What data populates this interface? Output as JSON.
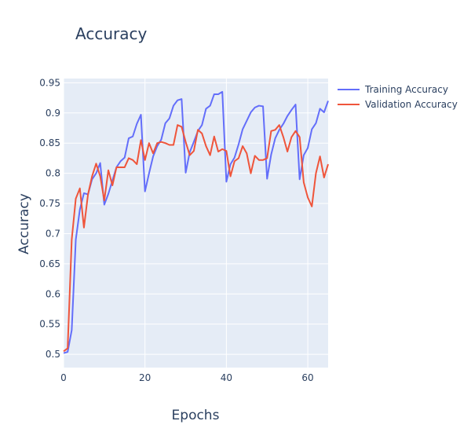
{
  "chart_data": {
    "type": "line",
    "title": "Accuracy",
    "xlabel": "Epochs",
    "ylabel": "Accuracy",
    "xlim": [
      0,
      65
    ],
    "ylim": [
      0.478,
      0.957
    ],
    "x_ticks": [
      0,
      20,
      40,
      60
    ],
    "y_ticks": [
      0.5,
      0.55,
      0.6,
      0.65,
      0.7,
      0.75,
      0.8,
      0.85,
      0.9,
      0.95
    ],
    "grid": true,
    "legend_position": "top-right",
    "background_color": "#e5ecf6",
    "series": [
      {
        "name": "Training Accuracy",
        "color": "#636efa",
        "values": [
          0.502,
          0.504,
          0.54,
          0.69,
          0.74,
          0.767,
          0.765,
          0.79,
          0.8,
          0.817,
          0.748,
          0.766,
          0.788,
          0.81,
          0.82,
          0.826,
          0.858,
          0.861,
          0.882,
          0.897,
          0.77,
          0.8,
          0.828,
          0.845,
          0.856,
          0.883,
          0.891,
          0.912,
          0.921,
          0.923,
          0.801,
          0.835,
          0.852,
          0.87,
          0.88,
          0.907,
          0.912,
          0.931,
          0.931,
          0.935,
          0.786,
          0.815,
          0.826,
          0.848,
          0.873,
          0.887,
          0.901,
          0.909,
          0.912,
          0.911,
          0.791,
          0.831,
          0.858,
          0.872,
          0.882,
          0.895,
          0.905,
          0.914,
          0.79,
          0.83,
          0.842,
          0.873,
          0.883,
          0.907,
          0.901,
          0.92
        ]
      },
      {
        "name": "Validation Accuracy",
        "color": "#ef553b",
        "values": [
          0.505,
          0.51,
          0.69,
          0.758,
          0.775,
          0.71,
          0.765,
          0.795,
          0.816,
          0.795,
          0.755,
          0.805,
          0.78,
          0.81,
          0.81,
          0.81,
          0.825,
          0.822,
          0.815,
          0.855,
          0.822,
          0.85,
          0.833,
          0.85,
          0.852,
          0.85,
          0.847,
          0.847,
          0.88,
          0.877,
          0.852,
          0.83,
          0.837,
          0.872,
          0.866,
          0.845,
          0.83,
          0.861,
          0.836,
          0.84,
          0.837,
          0.795,
          0.82,
          0.825,
          0.845,
          0.833,
          0.8,
          0.829,
          0.822,
          0.822,
          0.825,
          0.87,
          0.872,
          0.88,
          0.86,
          0.836,
          0.86,
          0.87,
          0.86,
          0.785,
          0.76,
          0.745,
          0.8,
          0.828,
          0.793,
          0.815
        ]
      }
    ]
  }
}
